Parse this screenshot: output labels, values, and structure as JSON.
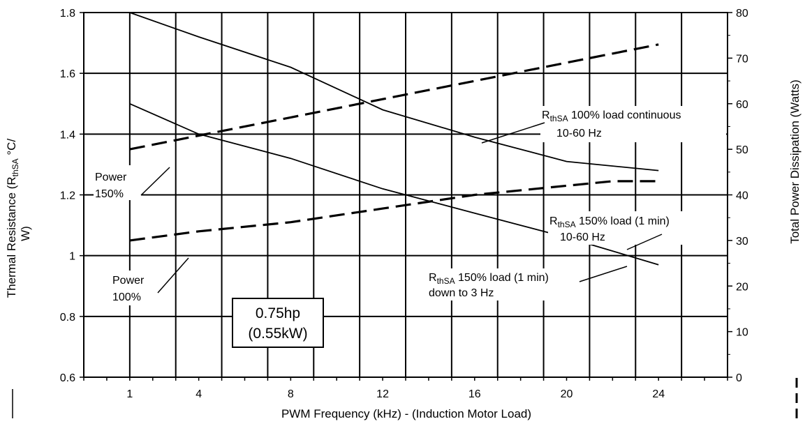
{
  "chart_data": {
    "type": "line",
    "xlabel": "PWM Frequency (kHz) - (Induction Motor Load)",
    "ylabel_left": {
      "prefix": "Thermal Resistance (R",
      "subscript": "thSA",
      "suffix_line1": " °C/",
      "line2": "W)"
    },
    "ylabel_right": "Total Power Dissipation (Watts)",
    "x_ticks": [
      "1",
      "4",
      "8",
      "12",
      "16",
      "20",
      "24"
    ],
    "x_tick_positions": [
      1,
      4,
      8,
      12,
      16,
      20,
      24
    ],
    "xlim": [
      -1,
      27
    ],
    "y_left_ticks": [
      "0.6",
      "0.8",
      "1",
      "1.2",
      "1.4",
      "1.6",
      "1.8"
    ],
    "y_left_lim": [
      0.6,
      1.8
    ],
    "y_right_ticks": [
      "0",
      "10",
      "20",
      "30",
      "40",
      "50",
      "60",
      "70",
      "80"
    ],
    "y_right_lim": [
      0,
      80
    ],
    "grid": true,
    "series": [
      {
        "axis": "left",
        "style": "solid",
        "x": [
          1,
          4,
          8,
          12,
          16,
          18,
          20,
          24
        ],
        "y": [
          1.8,
          1.72,
          1.62,
          1.48,
          1.39,
          1.35,
          1.31,
          1.28
        ]
      },
      {
        "axis": "left",
        "style": "solid",
        "x": [
          1,
          4,
          8,
          12,
          16,
          18,
          20,
          24
        ],
        "y": [
          1.5,
          1.4,
          1.32,
          1.22,
          1.14,
          1.1,
          1.06,
          0.97
        ]
      },
      {
        "axis": "right",
        "style": "dashed",
        "x": [
          1,
          2,
          4,
          8,
          12,
          16,
          20,
          24
        ],
        "y": [
          50,
          51,
          53,
          57,
          61,
          65,
          69,
          73
        ]
      },
      {
        "axis": "right",
        "style": "dashed",
        "x": [
          1,
          4,
          8,
          12,
          16,
          20,
          22,
          24
        ],
        "y": [
          30,
          32,
          34,
          37,
          40,
          42,
          43,
          43
        ]
      }
    ],
    "annotations": {
      "power_150": [
        "Power",
        "150%"
      ],
      "power_100": [
        "Power",
        "100%"
      ],
      "rth_100": {
        "prefix": "R",
        "sub": "thSA",
        "rest": " 100% load continuous",
        "line2": "10-60 Hz"
      },
      "rth_150": {
        "prefix": "R",
        "sub": "thSA",
        "rest": " 150% load (1 min)",
        "line2": "10-60 Hz"
      },
      "rth_150_3hz": {
        "prefix": "R",
        "sub": "thSA",
        "rest": " 150% load (1 min)",
        "line2": "down to 3 Hz"
      },
      "rating_box": [
        "0.75hp",
        "(0.55kW)"
      ]
    }
  }
}
